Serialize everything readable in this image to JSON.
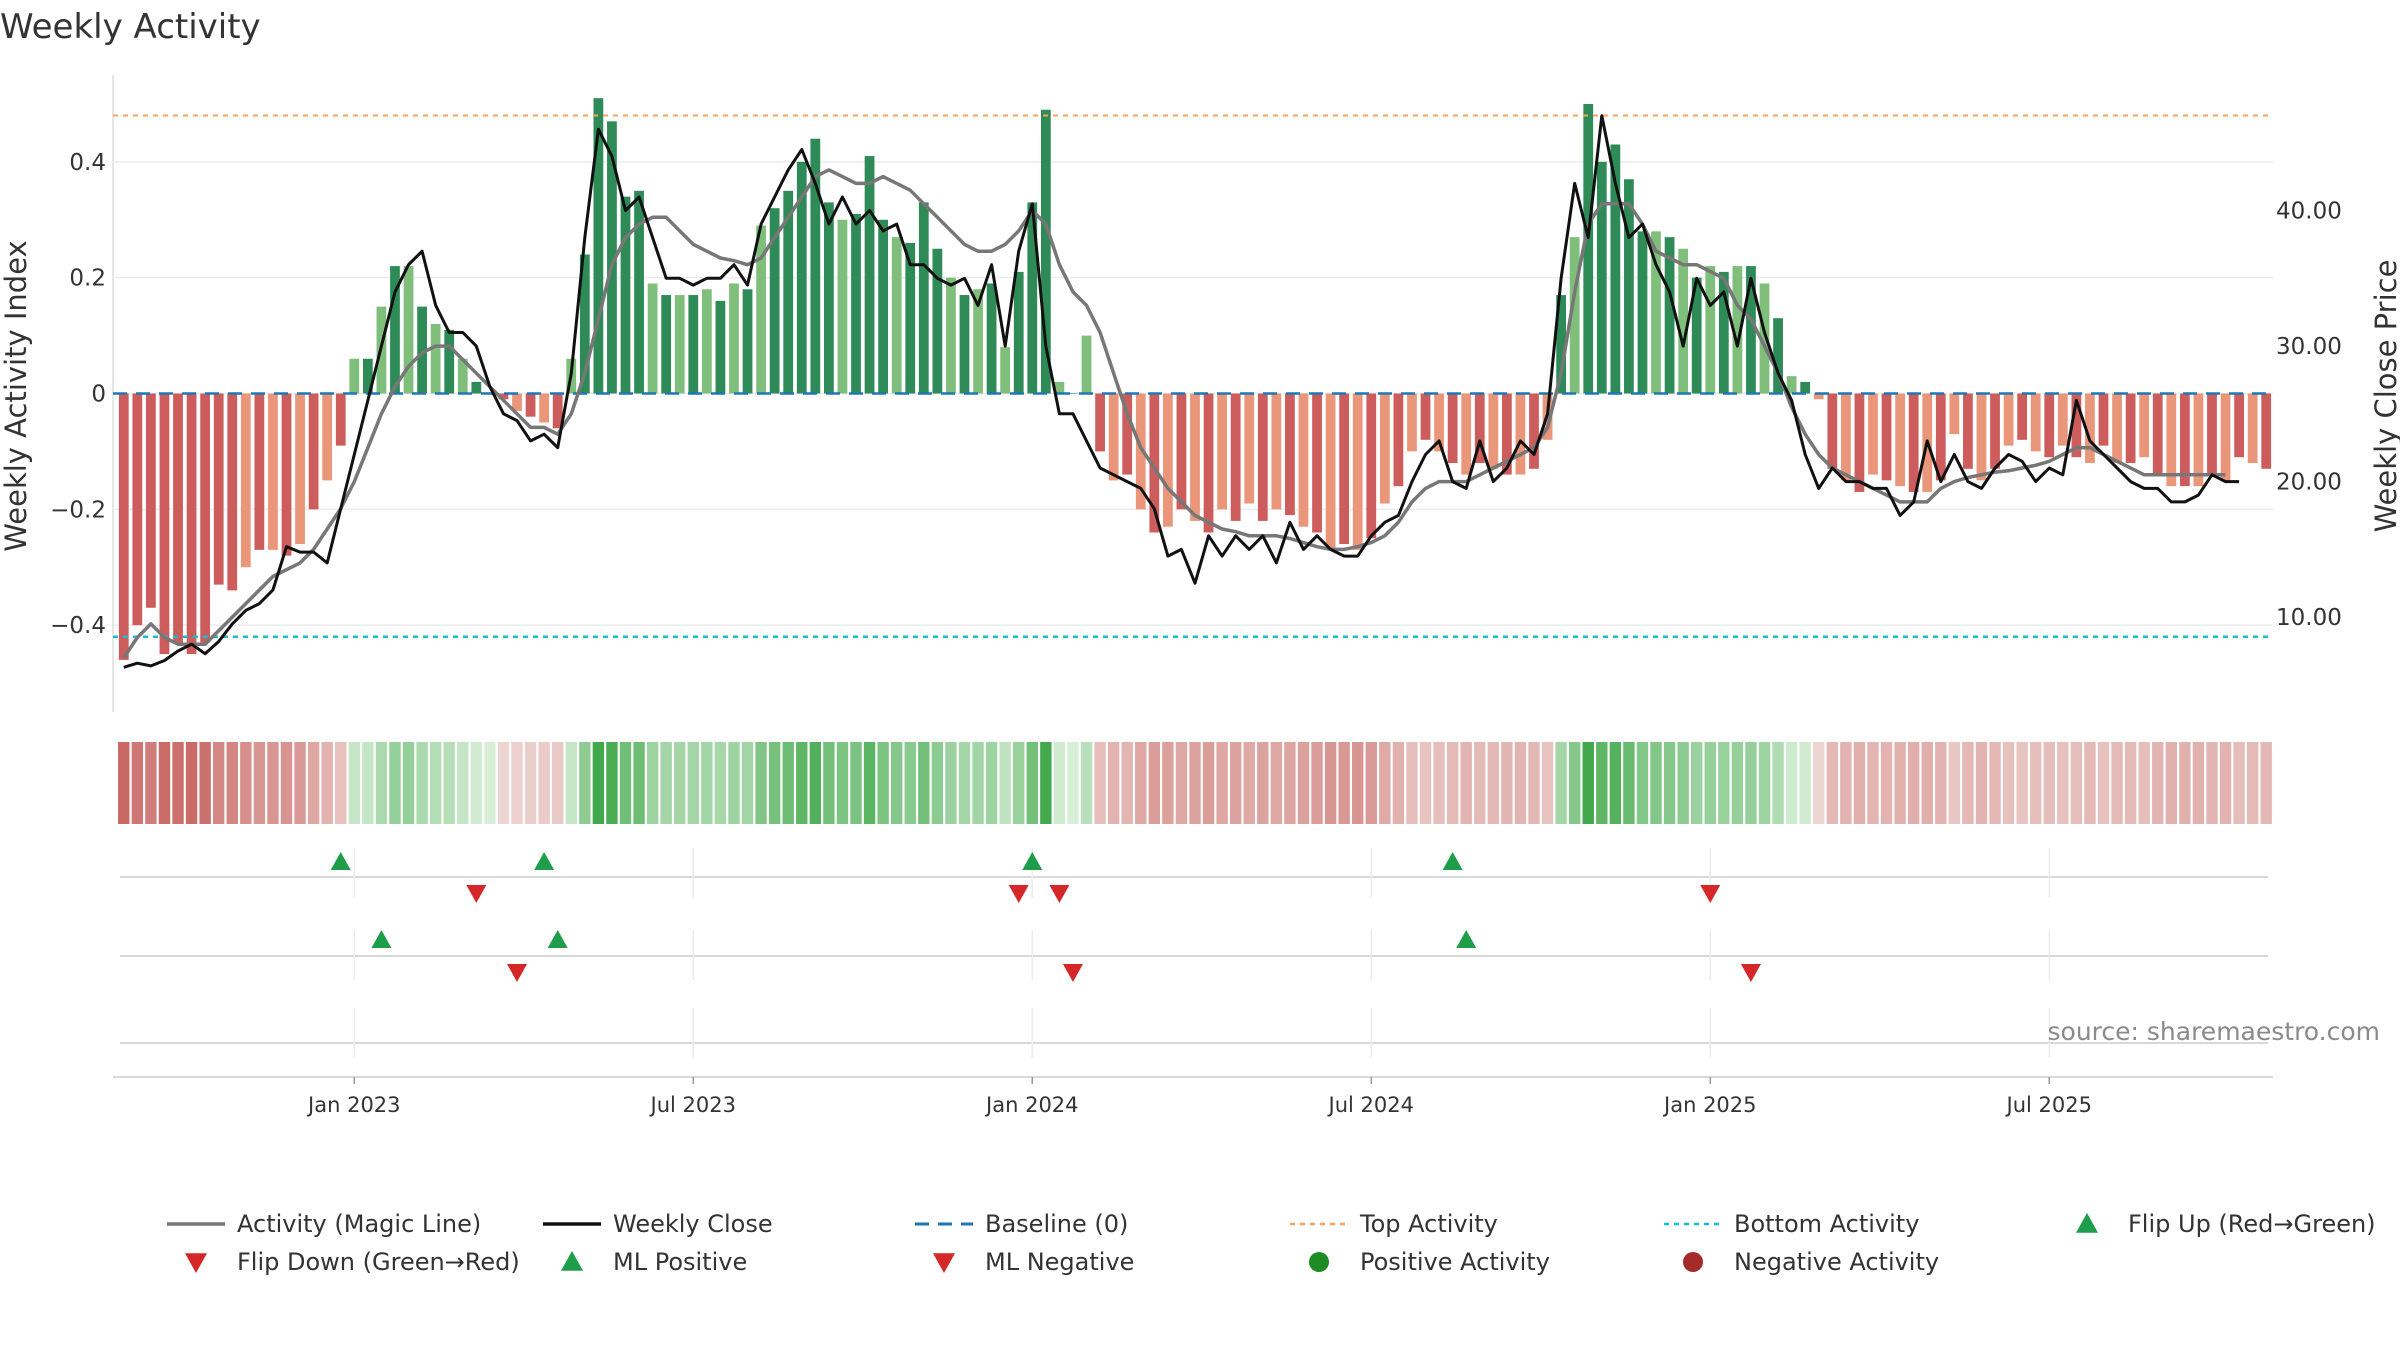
{
  "chart_data": {
    "type": "bar",
    "title": "Weekly Activity",
    "ylabel": "Weekly Activity Index",
    "y2label": "Weekly Close Price",
    "source": "source: sharemaestro.com",
    "ylim": [
      -0.55,
      0.55
    ],
    "y2lim": [
      3,
      50
    ],
    "yticks": [
      {
        "v": 0.4,
        "label": "0.4"
      },
      {
        "v": 0.2,
        "label": "0.2"
      },
      {
        "v": 0,
        "label": "0"
      },
      {
        "v": -0.2,
        "label": "−0.2"
      },
      {
        "v": -0.4,
        "label": "−0.4"
      }
    ],
    "y2ticks": [
      {
        "v": 40,
        "label": "40.00"
      },
      {
        "v": 30,
        "label": "30.00"
      },
      {
        "v": 20,
        "label": "20.00"
      },
      {
        "v": 10,
        "label": "10.00"
      }
    ],
    "xticks": [
      "Jan 2023",
      "Jul 2023",
      "Jan 2024",
      "Jul 2024",
      "Jan 2025",
      "Jul 2025"
    ],
    "xtick_weeks": [
      17,
      42,
      67,
      92,
      117,
      142
    ],
    "top_activity": 0.48,
    "bottom_activity": -0.42,
    "baseline": 0,
    "grid": true,
    "legend_position": "bottom",
    "colors": {
      "magic_line": "#777777",
      "weekly_close": "#111111",
      "baseline": "#1f77b4",
      "top": "#f4a460",
      "bottom": "#17becf",
      "positive_dark": "#2e8b57",
      "positive_light": "#7fbf7b",
      "negative_dark": "#cd5c5c",
      "negative_light": "#e9967a",
      "flip_up": "#1e9e4a",
      "flip_down": "#d62728",
      "positive_activity": "#1f8b24",
      "negative_activity": "#a52a2a"
    },
    "series": [
      {
        "name": "Weekly Activity Index",
        "kind": "bar",
        "values": [
          -0.46,
          -0.4,
          -0.37,
          -0.45,
          -0.43,
          -0.45,
          -0.43,
          -0.33,
          -0.34,
          -0.3,
          -0.27,
          -0.27,
          -0.28,
          -0.26,
          -0.2,
          -0.15,
          -0.09,
          0.06,
          0.06,
          0.15,
          0.22,
          0.22,
          0.15,
          0.12,
          0.11,
          0.06,
          0.02,
          0.0,
          -0.01,
          -0.03,
          -0.04,
          -0.05,
          -0.06,
          0.06,
          0.24,
          0.51,
          0.47,
          0.34,
          0.35,
          0.19,
          0.17,
          0.17,
          0.17,
          0.18,
          0.16,
          0.19,
          0.18,
          0.29,
          0.32,
          0.35,
          0.4,
          0.44,
          0.33,
          0.3,
          0.31,
          0.41,
          0.3,
          0.27,
          0.26,
          0.33,
          0.25,
          0.2,
          0.17,
          0.18,
          0.19,
          0.08,
          0.21,
          0.33,
          0.49,
          0.02,
          0.0,
          0.1,
          -0.1,
          -0.15,
          -0.14,
          -0.2,
          -0.24,
          -0.23,
          -0.2,
          -0.22,
          -0.24,
          -0.2,
          -0.22,
          -0.19,
          -0.22,
          -0.2,
          -0.21,
          -0.23,
          -0.24,
          -0.27,
          -0.26,
          -0.27,
          -0.25,
          -0.19,
          -0.16,
          -0.1,
          -0.08,
          -0.1,
          -0.12,
          -0.14,
          -0.12,
          -0.13,
          -0.14,
          -0.14,
          -0.13,
          -0.08,
          0.17,
          0.27,
          0.5,
          0.4,
          0.43,
          0.37,
          0.28,
          0.28,
          0.27,
          0.25,
          0.2,
          0.22,
          0.21,
          0.22,
          0.22,
          0.19,
          0.13,
          0.03,
          0.02,
          -0.01,
          -0.13,
          -0.15,
          -0.17,
          -0.14,
          -0.15,
          -0.16,
          -0.17,
          -0.17,
          -0.15,
          -0.07,
          -0.13,
          -0.15,
          -0.13,
          -0.09,
          -0.08,
          -0.1,
          -0.11,
          -0.09,
          -0.11,
          -0.12,
          -0.09,
          -0.12,
          -0.12,
          -0.11,
          -0.14,
          -0.16,
          -0.16,
          -0.16,
          -0.14,
          -0.15,
          -0.11,
          -0.12,
          -0.13
        ]
      },
      {
        "name": "Weekly Close",
        "kind": "line",
        "axis": "right",
        "values": [
          6.3,
          6.6,
          6.4,
          6.8,
          7.5,
          8.0,
          7.3,
          8.2,
          9.5,
          10.5,
          11.0,
          12.0,
          15.2,
          14.8,
          14.8,
          14.0,
          18.0,
          22.0,
          26.0,
          30.0,
          34.0,
          36.0,
          37.0,
          33.0,
          31.0,
          31.0,
          30.0,
          27.0,
          25.0,
          24.5,
          23.0,
          23.5,
          22.5,
          28.0,
          38.0,
          46.0,
          44.0,
          40.0,
          41.0,
          38.0,
          35.0,
          35.0,
          34.5,
          35.0,
          35.0,
          36.0,
          34.5,
          39.0,
          41.0,
          43.0,
          44.5,
          42.0,
          39.0,
          41.0,
          39.0,
          40.0,
          38.5,
          39.0,
          36.0,
          36.0,
          35.0,
          34.5,
          35.0,
          33.0,
          36.0,
          30.0,
          37.0,
          40.5,
          30.0,
          25.0,
          25.0,
          23.0,
          21.0,
          20.5,
          20.0,
          19.5,
          18.0,
          14.5,
          15.0,
          12.5,
          16.0,
          14.5,
          16.0,
          15.0,
          16.0,
          14.0,
          17.0,
          15.0,
          16.0,
          15.0,
          14.5,
          14.5,
          16.0,
          17.0,
          17.5,
          20.0,
          22.0,
          23.0,
          20.0,
          19.5,
          23.0,
          20.0,
          21.0,
          23.0,
          22.0,
          25.0,
          35.0,
          42.0,
          38.0,
          47.0,
          42.0,
          38.0,
          39.0,
          36.0,
          34.0,
          30.0,
          35.0,
          33.0,
          34.0,
          30.0,
          35.0,
          31.0,
          28.0,
          26.0,
          22.0,
          19.5,
          21.0,
          20.0,
          20.0,
          19.5,
          19.5,
          17.5,
          18.5,
          23.0,
          20.0,
          22.0,
          20.0,
          19.5,
          21.0,
          22.0,
          21.5,
          20.0,
          21.0,
          20.5,
          26.0,
          23.0,
          22.0,
          21.0,
          20.0,
          19.5,
          19.5,
          18.5,
          18.5,
          19.0,
          20.5,
          20.0,
          20.0
        ]
      },
      {
        "name": "Activity (Magic Line)",
        "kind": "line",
        "axis": "right",
        "values": [
          7.0,
          8.5,
          9.5,
          8.5,
          8.0,
          8.0,
          8.0,
          9.0,
          10.0,
          11.0,
          12.0,
          13.0,
          13.5,
          14.0,
          15.0,
          16.5,
          18.0,
          20.0,
          22.5,
          25.0,
          27.0,
          28.5,
          29.5,
          30.0,
          30.0,
          29.0,
          28.0,
          27.0,
          26.0,
          25.0,
          24.0,
          24.0,
          23.5,
          25.0,
          28.0,
          32.0,
          36.0,
          38.0,
          39.0,
          39.5,
          39.5,
          38.5,
          37.5,
          37.0,
          36.5,
          36.3,
          36.0,
          36.5,
          38.0,
          39.5,
          41.0,
          42.5,
          43.0,
          42.5,
          42.0,
          42.0,
          42.5,
          42.0,
          41.5,
          40.5,
          39.5,
          38.5,
          37.5,
          37.0,
          37.0,
          37.5,
          38.5,
          40.0,
          39.0,
          36.0,
          34.0,
          33.0,
          31.0,
          28.0,
          25.0,
          22.5,
          21.0,
          19.5,
          18.5,
          17.5,
          17.0,
          16.5,
          16.3,
          16.0,
          16.0,
          16.0,
          15.8,
          15.5,
          15.2,
          15.0,
          15.0,
          15.2,
          15.5,
          16.0,
          17.0,
          18.5,
          19.5,
          20.0,
          20.0,
          20.0,
          20.5,
          21.0,
          21.5,
          22.0,
          22.5,
          24.0,
          28.0,
          34.0,
          39.0,
          40.5,
          40.5,
          40.5,
          39.0,
          37.0,
          36.5,
          36.0,
          36.0,
          35.5,
          35.0,
          33.0,
          32.0,
          30.0,
          28.0,
          25.5,
          23.5,
          22.0,
          21.0,
          20.5,
          20.0,
          19.5,
          19.0,
          18.5,
          18.5,
          18.5,
          19.5,
          20.0,
          20.3,
          20.5,
          20.7,
          20.8,
          21.0,
          21.2,
          21.5,
          22.0,
          22.5,
          22.5,
          22.0,
          21.5,
          21.0,
          20.5,
          20.5,
          20.5,
          20.5,
          20.5,
          20.5,
          20.5
        ]
      }
    ],
    "flip_rows": {
      "flip_up_weeks": [
        16,
        31,
        67,
        98
      ],
      "flip_down_weeks": [
        26,
        66,
        69,
        117
      ],
      "ml_positive_weeks": [
        19,
        32,
        99
      ],
      "ml_negative_weeks": [
        29,
        70,
        120
      ]
    },
    "legend": [
      {
        "label": "Activity (Magic Line)",
        "symbol": "line",
        "color": "#777777"
      },
      {
        "label": "Weekly Close",
        "symbol": "line",
        "color": "#111111"
      },
      {
        "label": "Baseline (0)",
        "symbol": "dash",
        "color": "#1f77b4"
      },
      {
        "label": "Top Activity",
        "symbol": "dot",
        "color": "#f4a460"
      },
      {
        "label": "Bottom Activity",
        "symbol": "dot",
        "color": "#17becf"
      },
      {
        "label": "Flip Up (Red→Green)",
        "symbol": "tri-up",
        "color": "#1e9e4a"
      },
      {
        "label": "Flip Down (Green→Red)",
        "symbol": "tri-down",
        "color": "#d62728"
      },
      {
        "label": "ML Positive",
        "symbol": "tri-up",
        "color": "#1e9e4a"
      },
      {
        "label": "ML Negative",
        "symbol": "tri-down",
        "color": "#d62728"
      },
      {
        "label": "Positive Activity",
        "symbol": "circle",
        "color": "#1f8b24"
      },
      {
        "label": "Negative Activity",
        "symbol": "circle",
        "color": "#a52a2a"
      }
    ]
  }
}
